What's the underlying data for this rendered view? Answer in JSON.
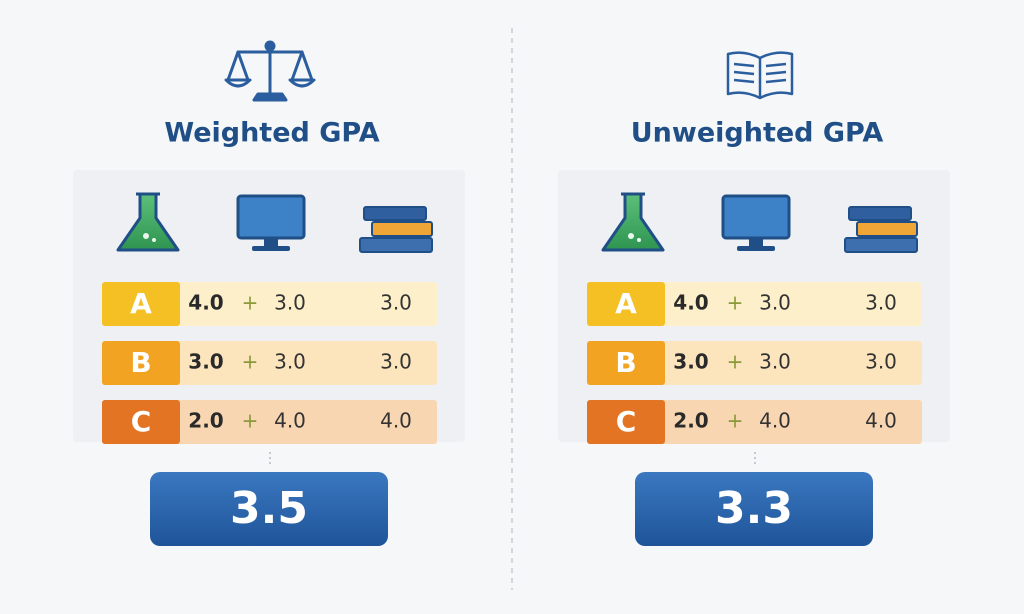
{
  "panels": [
    {
      "title": "Weighted GPA",
      "rows": [
        {
          "grade": "A",
          "col1": "4.0",
          "op": "+",
          "col2": "3.0",
          "col3": "3.0"
        },
        {
          "grade": "B",
          "col1": "3.0",
          "op": "+",
          "col2": "3.0",
          "col3": "3.0"
        },
        {
          "grade": "C",
          "col1": "2.0",
          "op": "+",
          "col2": "4.0",
          "col3": "4.0"
        }
      ],
      "result": "3.5"
    },
    {
      "title": "Unweighted GPA",
      "rows": [
        {
          "grade": "A",
          "col1": "4.0",
          "op": "+",
          "col2": "3.0",
          "col3": "3.0"
        },
        {
          "grade": "B",
          "col1": "3.0",
          "op": "+",
          "col2": "3.0",
          "col3": "3.0"
        },
        {
          "grade": "C",
          "col1": "2.0",
          "op": "+",
          "col2": "4.0",
          "col3": "4.0"
        }
      ],
      "result": "3.3"
    }
  ]
}
